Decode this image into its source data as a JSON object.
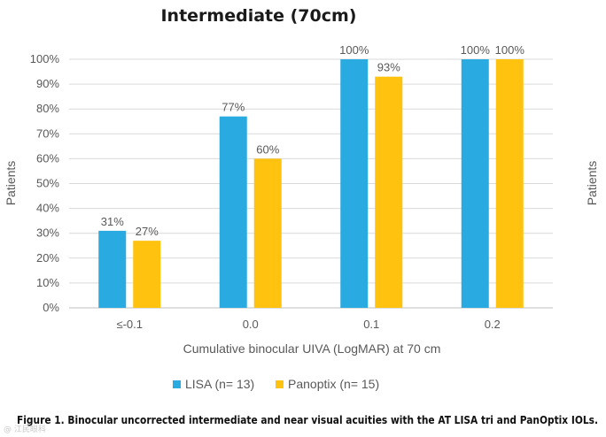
{
  "chart_data": {
    "type": "bar",
    "title": "Intermediate (70cm)",
    "categories": [
      "≤-0.1",
      "0.0",
      "0.1",
      "0.2"
    ],
    "series": [
      {
        "name": "LISA (n= 13)",
        "color": "#29ABE2",
        "values": [
          31,
          77,
          100,
          100
        ],
        "labels": [
          "31%",
          "77%",
          "100%",
          "100%"
        ]
      },
      {
        "name": "Panoptix (n= 15)",
        "color": "#FFC20E",
        "values": [
          27,
          60,
          93,
          100
        ],
        "labels": [
          "27%",
          "60%",
          "93%",
          "100%"
        ]
      }
    ],
    "ylim": [
      0,
      100
    ],
    "yticks": [
      0,
      10,
      20,
      30,
      40,
      50,
      60,
      70,
      80,
      90,
      100
    ],
    "ytick_labels": [
      "0%",
      "10%",
      "20%",
      "30%",
      "40%",
      "50%",
      "60%",
      "70%",
      "80%",
      "90%",
      "100%"
    ],
    "xlabel": "Cumulative binocular UIVA (LogMAR) at 70 cm",
    "ylabel": "Patients",
    "ylabel_right": "Patients",
    "grid": true,
    "legend_position": "bottom"
  },
  "caption": "Figure 1. Binocular uncorrected intermediate and near visual acuities with the AT LISA tri and PanOptix IOLs.",
  "watermark": "@ 江民眼科"
}
